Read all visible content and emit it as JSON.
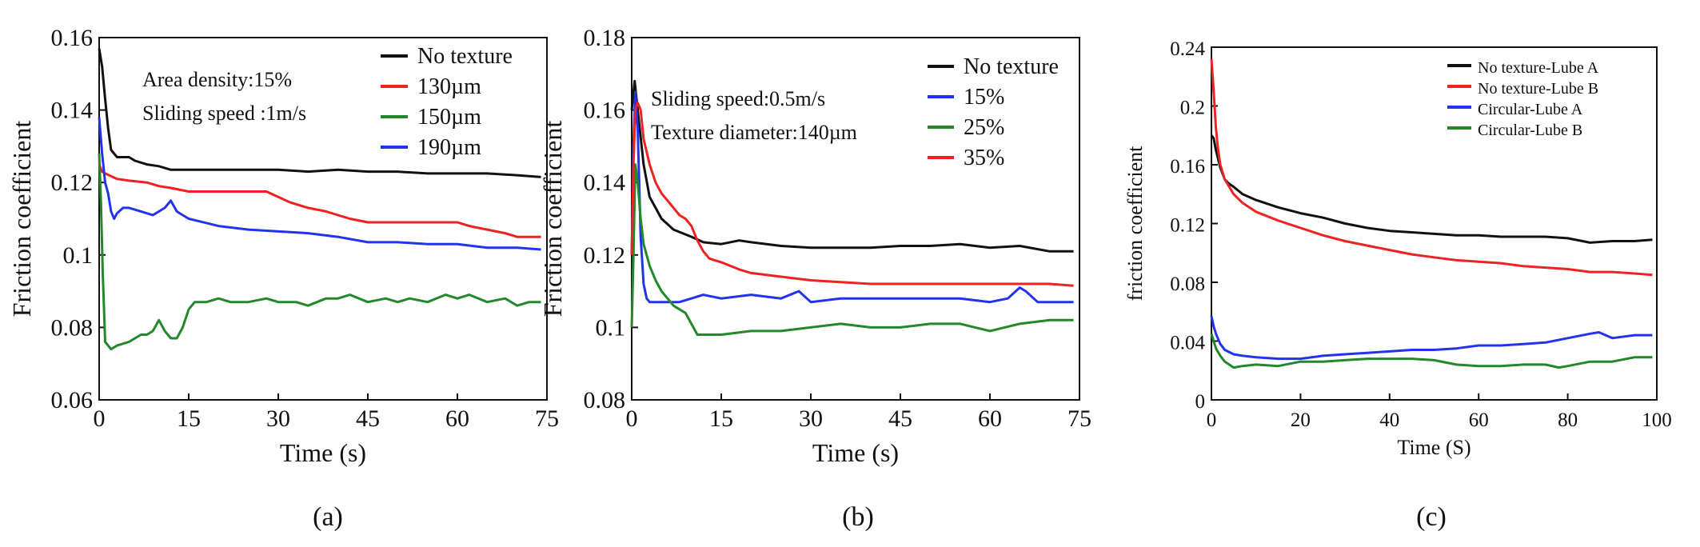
{
  "colors": {
    "black": "#111111",
    "red": "#ee2222",
    "green": "#22882a",
    "blue": "#2233ee",
    "axis": "#111111"
  },
  "chart_data": [
    {
      "type": "line",
      "panel_label": "(a)",
      "xlabel": "Time (s)",
      "ylabel": "Friction coefficient",
      "xlim": [
        0,
        75
      ],
      "ylim": [
        0.06,
        0.16
      ],
      "xticks": [
        0,
        15,
        30,
        45,
        60,
        75
      ],
      "yticks": [
        0.06,
        0.08,
        0.1,
        0.12,
        0.14,
        0.16
      ],
      "xtick_labels": [
        "0",
        "15",
        "30",
        "45",
        "60",
        "75"
      ],
      "ytick_labels": [
        "0.06",
        "0.08",
        "0.1",
        "0.12",
        "0.14",
        "0.16"
      ],
      "legend_position": "top-right",
      "annotations": [
        "Area density:15%",
        "Sliding speed :1m/s"
      ],
      "series": [
        {
          "name": "No texture",
          "color": "black",
          "x": [
            0,
            0.5,
            1,
            1.5,
            2,
            3,
            4,
            5,
            6,
            8,
            10,
            12,
            15,
            20,
            25,
            30,
            35,
            40,
            45,
            50,
            55,
            60,
            65,
            70,
            74
          ],
          "y": [
            0.157,
            0.152,
            0.143,
            0.135,
            0.129,
            0.127,
            0.127,
            0.127,
            0.126,
            0.125,
            0.1245,
            0.1235,
            0.1235,
            0.1235,
            0.1235,
            0.1235,
            0.123,
            0.1235,
            0.123,
            0.123,
            0.1225,
            0.1225,
            0.1225,
            0.122,
            0.1215
          ]
        },
        {
          "name": "130µm",
          "color": "red",
          "x": [
            0,
            0.5,
            1,
            3,
            5,
            8,
            10,
            12,
            15,
            20,
            25,
            28,
            30,
            32,
            35,
            38,
            40,
            42,
            45,
            48,
            50,
            55,
            60,
            62,
            65,
            68,
            70,
            74
          ],
          "y": [
            0.125,
            0.123,
            0.1225,
            0.121,
            0.1205,
            0.12,
            0.119,
            0.1185,
            0.1175,
            0.1175,
            0.1175,
            0.1175,
            0.116,
            0.1145,
            0.113,
            0.112,
            0.111,
            0.11,
            0.109,
            0.109,
            0.109,
            0.109,
            0.109,
            0.108,
            0.107,
            0.106,
            0.105,
            0.105
          ]
        },
        {
          "name": "150µm",
          "color": "green",
          "x": [
            0,
            0.3,
            0.6,
            1,
            1.5,
            2,
            3,
            5,
            7,
            8,
            9,
            10,
            11,
            12,
            13,
            14,
            15,
            16,
            18,
            20,
            22,
            25,
            28,
            30,
            33,
            35,
            38,
            40,
            42,
            45,
            48,
            50,
            52,
            55,
            58,
            60,
            62,
            65,
            68,
            70,
            72,
            74
          ],
          "y": [
            0.128,
            0.115,
            0.095,
            0.076,
            0.075,
            0.074,
            0.075,
            0.076,
            0.078,
            0.078,
            0.079,
            0.082,
            0.079,
            0.077,
            0.077,
            0.08,
            0.085,
            0.087,
            0.087,
            0.088,
            0.087,
            0.087,
            0.088,
            0.087,
            0.087,
            0.086,
            0.088,
            0.088,
            0.089,
            0.087,
            0.088,
            0.087,
            0.088,
            0.087,
            0.089,
            0.088,
            0.089,
            0.087,
            0.088,
            0.086,
            0.087,
            0.087
          ]
        },
        {
          "name": "190µm",
          "color": "blue",
          "x": [
            0,
            0.5,
            1,
            1.5,
            2,
            2.5,
            3,
            4,
            5,
            7,
            9,
            10,
            11,
            12,
            13,
            14,
            15,
            20,
            25,
            30,
            35,
            40,
            45,
            50,
            55,
            60,
            65,
            70,
            74
          ],
          "y": [
            0.138,
            0.128,
            0.12,
            0.117,
            0.112,
            0.11,
            0.1115,
            0.113,
            0.113,
            0.112,
            0.111,
            0.112,
            0.113,
            0.115,
            0.112,
            0.111,
            0.11,
            0.108,
            0.107,
            0.1065,
            0.106,
            0.105,
            0.1035,
            0.1035,
            0.103,
            0.103,
            0.102,
            0.102,
            0.1015
          ]
        }
      ]
    },
    {
      "type": "line",
      "panel_label": "(b)",
      "xlabel": "Time (s)",
      "ylabel": "Friction coefficient",
      "xlim": [
        0,
        75
      ],
      "ylim": [
        0.08,
        0.18
      ],
      "xticks": [
        0,
        15,
        30,
        45,
        60,
        75
      ],
      "yticks": [
        0.08,
        0.1,
        0.12,
        0.14,
        0.16,
        0.18
      ],
      "xtick_labels": [
        "0",
        "15",
        "30",
        "45",
        "60",
        "75"
      ],
      "ytick_labels": [
        "0.08",
        "0.1",
        "0.12",
        "0.14",
        "0.16",
        "0.18"
      ],
      "legend_position": "top-right",
      "annotations": [
        "Sliding speed:0.5m/s",
        "Texture diameter:140µm"
      ],
      "series": [
        {
          "name": "No texture",
          "color": "black",
          "x": [
            0,
            0.5,
            1,
            2,
            3,
            4,
            5,
            7,
            10,
            12,
            15,
            18,
            20,
            25,
            30,
            35,
            40,
            45,
            50,
            55,
            60,
            65,
            70,
            74
          ],
          "y": [
            0.16,
            0.168,
            0.16,
            0.145,
            0.136,
            0.133,
            0.13,
            0.127,
            0.125,
            0.1235,
            0.123,
            0.124,
            0.1235,
            0.1225,
            0.122,
            0.122,
            0.122,
            0.1225,
            0.1225,
            0.123,
            0.122,
            0.1225,
            0.121,
            0.121
          ]
        },
        {
          "name": "15%",
          "color": "blue",
          "x": [
            0,
            0.3,
            0.6,
            1,
            1.5,
            2,
            2.5,
            3,
            5,
            8,
            10,
            12,
            15,
            20,
            25,
            28,
            30,
            35,
            40,
            45,
            50,
            55,
            60,
            63,
            65,
            66,
            68,
            70,
            74
          ],
          "y": [
            0.12,
            0.15,
            0.165,
            0.155,
            0.125,
            0.112,
            0.108,
            0.107,
            0.107,
            0.107,
            0.108,
            0.109,
            0.108,
            0.109,
            0.108,
            0.11,
            0.107,
            0.108,
            0.108,
            0.108,
            0.108,
            0.108,
            0.107,
            0.108,
            0.111,
            0.11,
            0.107,
            0.107,
            0.107
          ]
        },
        {
          "name": "25%",
          "color": "green",
          "x": [
            0,
            0.3,
            0.6,
            1,
            1.5,
            2,
            3,
            4,
            5,
            6,
            7,
            8,
            9,
            10,
            11,
            12,
            15,
            20,
            25,
            30,
            35,
            40,
            45,
            50,
            55,
            60,
            65,
            70,
            74
          ],
          "y": [
            0.1,
            0.12,
            0.145,
            0.14,
            0.13,
            0.123,
            0.117,
            0.113,
            0.11,
            0.108,
            0.106,
            0.105,
            0.104,
            0.101,
            0.098,
            0.098,
            0.098,
            0.099,
            0.099,
            0.1,
            0.101,
            0.1,
            0.1,
            0.101,
            0.101,
            0.099,
            0.101,
            0.102,
            0.102
          ]
        },
        {
          "name": "35%",
          "color": "red",
          "x": [
            0,
            0.3,
            0.6,
            1,
            1.5,
            2,
            3,
            4,
            5,
            6,
            7,
            8,
            9,
            10,
            11,
            12,
            13,
            15,
            18,
            20,
            25,
            30,
            35,
            40,
            45,
            50,
            55,
            60,
            65,
            70,
            74
          ],
          "y": [
            0.12,
            0.145,
            0.16,
            0.162,
            0.16,
            0.152,
            0.145,
            0.14,
            0.137,
            0.135,
            0.133,
            0.131,
            0.13,
            0.128,
            0.124,
            0.121,
            0.119,
            0.118,
            0.116,
            0.115,
            0.114,
            0.113,
            0.1125,
            0.112,
            0.112,
            0.112,
            0.112,
            0.112,
            0.112,
            0.112,
            0.1115
          ]
        }
      ]
    },
    {
      "type": "line",
      "panel_label": "(c)",
      "xlabel": "Time (S)",
      "ylabel": "friction coefficient",
      "xlim": [
        0,
        100
      ],
      "ylim": [
        0,
        0.24
      ],
      "xticks": [
        0,
        20,
        40,
        60,
        80,
        100
      ],
      "yticks": [
        0,
        0.04,
        0.08,
        0.12,
        0.16,
        0.2,
        0.24
      ],
      "xtick_labels": [
        "0",
        "20",
        "40",
        "60",
        "80",
        "100"
      ],
      "ytick_labels": [
        "0",
        "0.04",
        "0.08",
        "0.12",
        "0.16",
        "0.2",
        "0.24"
      ],
      "legend_position": "top-right",
      "series": [
        {
          "name": "No texture-Lube A",
          "color": "black",
          "x": [
            0,
            0.5,
            1,
            2,
            3,
            4,
            5,
            7,
            10,
            15,
            20,
            25,
            30,
            35,
            40,
            45,
            50,
            55,
            60,
            65,
            70,
            75,
            80,
            85,
            90,
            95,
            99
          ],
          "y": [
            0.18,
            0.178,
            0.17,
            0.158,
            0.15,
            0.147,
            0.145,
            0.14,
            0.136,
            0.131,
            0.127,
            0.124,
            0.12,
            0.117,
            0.115,
            0.114,
            0.113,
            0.112,
            0.112,
            0.111,
            0.111,
            0.111,
            0.11,
            0.107,
            0.108,
            0.108,
            0.109
          ]
        },
        {
          "name": "No texture-Lube B",
          "color": "red",
          "x": [
            0,
            0.5,
            1,
            1.5,
            2,
            3,
            4,
            5,
            7,
            10,
            15,
            20,
            25,
            30,
            35,
            40,
            45,
            50,
            55,
            60,
            65,
            70,
            75,
            80,
            85,
            90,
            95,
            99
          ],
          "y": [
            0.232,
            0.21,
            0.185,
            0.17,
            0.16,
            0.15,
            0.145,
            0.14,
            0.134,
            0.128,
            0.122,
            0.117,
            0.112,
            0.108,
            0.105,
            0.102,
            0.099,
            0.097,
            0.095,
            0.094,
            0.093,
            0.091,
            0.09,
            0.089,
            0.087,
            0.087,
            0.086,
            0.085
          ]
        },
        {
          "name": "Circular-Lube A",
          "color": "blue",
          "x": [
            0,
            0.5,
            1,
            2,
            3,
            5,
            7,
            10,
            15,
            20,
            25,
            30,
            35,
            40,
            45,
            50,
            55,
            60,
            65,
            70,
            75,
            80,
            85,
            87,
            90,
            95,
            99
          ],
          "y": [
            0.057,
            0.05,
            0.045,
            0.038,
            0.034,
            0.031,
            0.03,
            0.029,
            0.028,
            0.028,
            0.03,
            0.031,
            0.032,
            0.033,
            0.034,
            0.034,
            0.035,
            0.037,
            0.037,
            0.038,
            0.039,
            0.042,
            0.045,
            0.046,
            0.042,
            0.044,
            0.044
          ]
        },
        {
          "name": "Circular-Lube B",
          "color": "green",
          "x": [
            0,
            0.5,
            1,
            2,
            3,
            4,
            5,
            7,
            10,
            15,
            20,
            25,
            30,
            35,
            40,
            45,
            50,
            55,
            60,
            65,
            70,
            75,
            78,
            80,
            85,
            90,
            95,
            99
          ],
          "y": [
            0.045,
            0.04,
            0.035,
            0.03,
            0.026,
            0.024,
            0.022,
            0.023,
            0.024,
            0.023,
            0.026,
            0.026,
            0.027,
            0.028,
            0.028,
            0.028,
            0.027,
            0.024,
            0.023,
            0.023,
            0.024,
            0.024,
            0.022,
            0.023,
            0.026,
            0.026,
            0.029,
            0.029
          ]
        }
      ]
    }
  ]
}
